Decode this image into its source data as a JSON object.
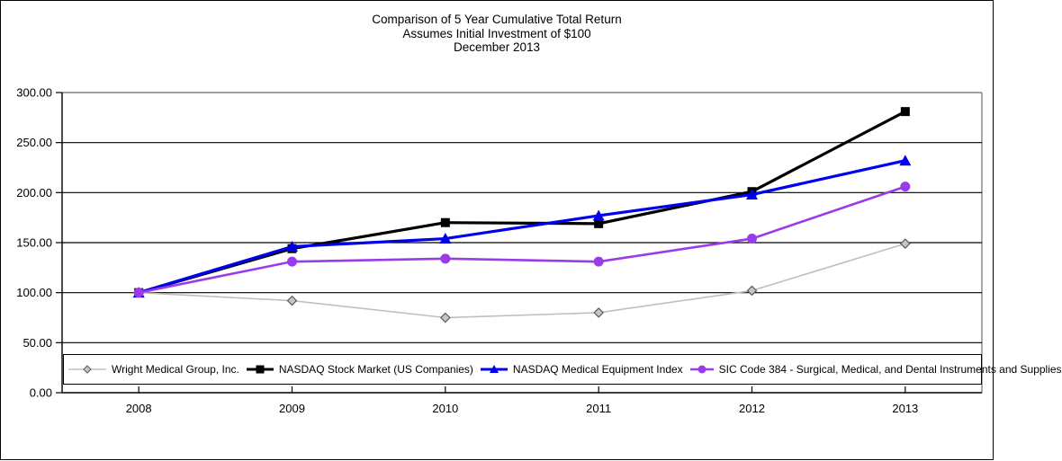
{
  "title": {
    "line1": "Comparison of 5 Year Cumulative Total Return",
    "line2": "Assumes Initial Investment of $100",
    "line3": "December 2013"
  },
  "chart_data": {
    "type": "line",
    "title": "Comparison of 5 Year Cumulative Total Return",
    "subtitle": "Assumes Initial Investment of $100",
    "date_label": "December 2013",
    "categories": [
      "2008",
      "2009",
      "2010",
      "2011",
      "2012",
      "2013"
    ],
    "series": [
      {
        "name": "Wright Medical Group, Inc.",
        "values": [
          100,
          92,
          75,
          80,
          102,
          149
        ],
        "color": "#BFBFBF",
        "marker": "diamond",
        "marker_fill": "#C6C6C6",
        "marker_stroke": "#595959",
        "line_width": 1.6
      },
      {
        "name": "NASDAQ Stock Market (US Companies)",
        "values": [
          100,
          144,
          170,
          169,
          201,
          281
        ],
        "color": "#000000",
        "marker": "square",
        "line_width": 3.2
      },
      {
        "name": "NASDAQ Medical Equipment Index",
        "values": [
          100,
          146,
          154,
          177,
          198,
          232
        ],
        "color": "#0000EE",
        "marker": "triangle",
        "line_width": 3.2
      },
      {
        "name": "SIC Code 384 - Surgical, Medical, and Dental Instruments and Supplies",
        "values": [
          100,
          131,
          134,
          131,
          154,
          206
        ],
        "color": "#9A3BEA",
        "marker": "circle",
        "line_width": 2.6
      }
    ],
    "ylim": [
      0,
      300
    ],
    "ytick_step": 50,
    "ytick_format": "0.00",
    "grid": "horizontal-black-lines",
    "legend_position": "bottom-inside-bordered-box",
    "axis_color": "#000000",
    "plot_top_right_border_color": "#848484"
  }
}
